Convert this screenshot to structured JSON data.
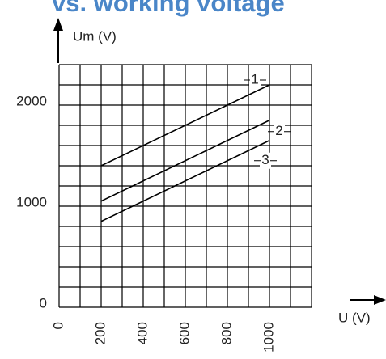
{
  "chart_data": {
    "type": "line",
    "title": "vs. working voltage",
    "y_label": "Um (V)",
    "x_label": "U (V)",
    "xlim": [
      0,
      1200
    ],
    "ylim": [
      0,
      2400
    ],
    "xticks": [
      0,
      200,
      400,
      600,
      800,
      1000
    ],
    "yticks": [
      0,
      1000,
      2000
    ],
    "xgrid": [
      0,
      100,
      200,
      300,
      400,
      500,
      600,
      700,
      800,
      900,
      1000,
      1100,
      1200
    ],
    "ygrid": [
      0,
      200,
      400,
      600,
      800,
      1000,
      1200,
      1400,
      1600,
      1800,
      2000,
      2200,
      2400
    ],
    "grid": true,
    "series": [
      {
        "name": "1",
        "color": "#000000",
        "x": [
          200,
          1000
        ],
        "values": [
          1400,
          2200
        ]
      },
      {
        "name": "2",
        "color": "#000000",
        "x": [
          200,
          1000
        ],
        "values": [
          1050,
          1850
        ]
      },
      {
        "name": "3",
        "color": "#000000",
        "x": [
          200,
          1000
        ],
        "values": [
          850,
          1650
        ]
      }
    ]
  }
}
